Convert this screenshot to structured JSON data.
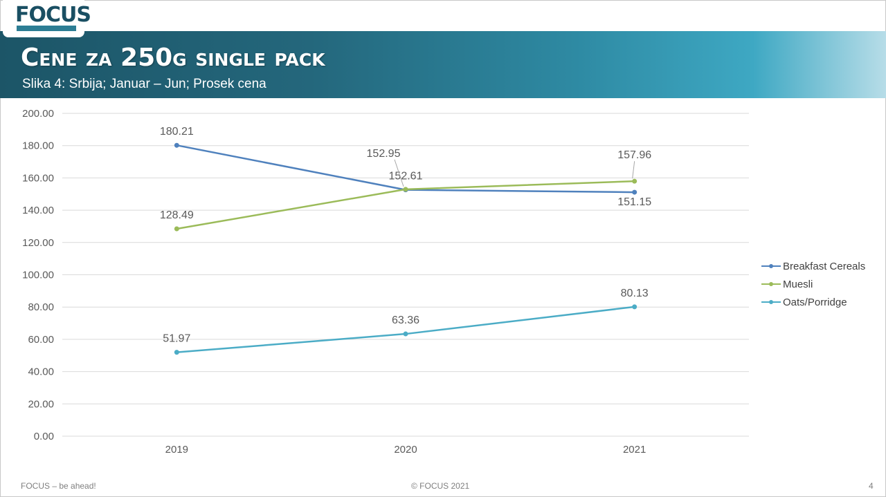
{
  "header": {
    "logo_text": "FOCUS",
    "title": "Cene za 250g single pack",
    "subtitle": "Slika 4: Srbija; Januar – Jun; Prosek cena"
  },
  "footer": {
    "left": "FOCUS – be ahead!",
    "center": "© FOCUS 2021",
    "page_number": "4"
  },
  "chart_data": {
    "type": "line",
    "categories": [
      "2019",
      "2020",
      "2021"
    ],
    "ylim": [
      0,
      200
    ],
    "ytick_step": 20,
    "ytick_labels": [
      "0.00",
      "20.00",
      "40.00",
      "60.00",
      "80.00",
      "100.00",
      "120.00",
      "140.00",
      "160.00",
      "180.00",
      "200.00"
    ],
    "grid": true,
    "legend_position": "right",
    "series": [
      {
        "name": "Breakfast Cereals",
        "values": [
          180.21,
          152.61,
          151.15
        ],
        "labels": [
          "180.21",
          "152.61",
          "151.15"
        ],
        "color": "#4f81bd"
      },
      {
        "name": "Muesli",
        "values": [
          128.49,
          152.95,
          157.96
        ],
        "labels": [
          "128.49",
          "152.95",
          "157.96"
        ],
        "color": "#9bbb59"
      },
      {
        "name": "Oats/Porridge",
        "values": [
          51.97,
          63.36,
          80.13
        ],
        "labels": [
          "51.97",
          "63.36",
          "80.13"
        ],
        "color": "#4bacc6"
      }
    ]
  }
}
